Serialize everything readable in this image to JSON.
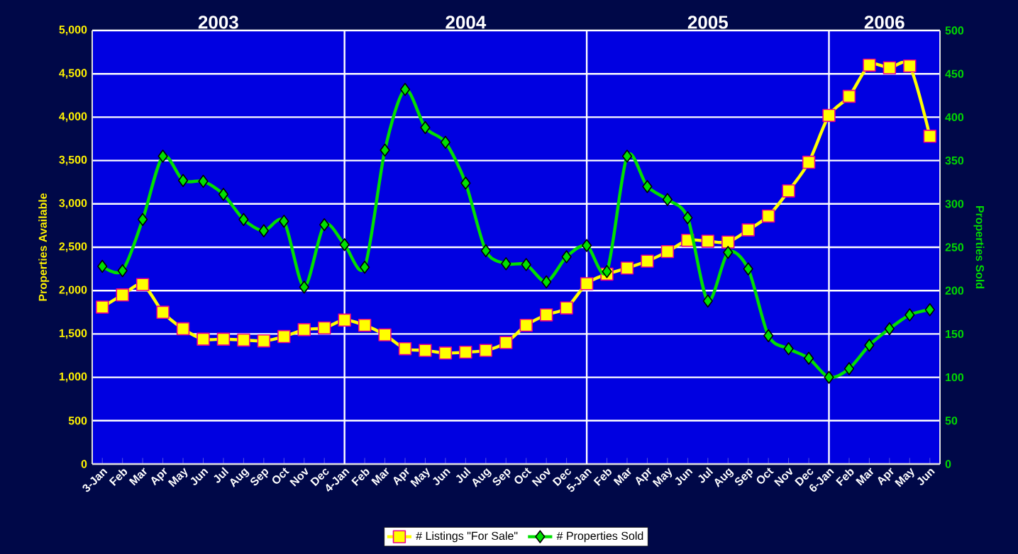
{
  "chart_data": {
    "type": "line",
    "categories": [
      "3-Jan",
      "Feb",
      "Mar",
      "Apr",
      "May",
      "Jun",
      "Jul",
      "Aug",
      "Sep",
      "Oct",
      "Nov",
      "Dec",
      "4-Jan",
      "Feb",
      "Mar",
      "Apr",
      "May",
      "Jun",
      "Jul",
      "Aug",
      "Sep",
      "Oct",
      "Nov",
      "Dec",
      "5-Jan",
      "Feb",
      "Mar",
      "Apr",
      "May",
      "Jun",
      "Jul",
      "Aug",
      "Sep",
      "Oct",
      "Nov",
      "Dec",
      "6-Jan",
      "Feb",
      "Mar",
      "Apr",
      "May",
      "Jun"
    ],
    "series": [
      {
        "name": "# Listings \"For Sale\"",
        "color": "#ffff00",
        "marker": "square",
        "values": [
          1810,
          1950,
          2070,
          1750,
          1560,
          1440,
          1440,
          1430,
          1420,
          1470,
          1550,
          1570,
          1660,
          1600,
          1490,
          1330,
          1310,
          1280,
          1290,
          1310,
          1400,
          1600,
          1720,
          1800,
          2080,
          2190,
          2260,
          2340,
          2450,
          2580,
          2570,
          2560,
          2700,
          2860,
          3150,
          3480,
          4020,
          4240,
          4600,
          4570,
          4590,
          3780
        ]
      },
      {
        "name": "# Properties Sold",
        "color": "#00e000",
        "marker": "diamond",
        "axis": "y2",
        "values": [
          228,
          223,
          282,
          355,
          327,
          326,
          311,
          282,
          269,
          280,
          204,
          276,
          253,
          227,
          362,
          432,
          388,
          371,
          324,
          246,
          231,
          230,
          210,
          239,
          252,
          222,
          355,
          320,
          305,
          284,
          188,
          244,
          225,
          148,
          133,
          122,
          100,
          110,
          137,
          156,
          172,
          178
        ]
      }
    ],
    "ylim": [
      0,
      5000
    ],
    "yticks": [
      0,
      500,
      {
        "value": 1000,
        "label": "1,000"
      },
      {
        "value": 1500,
        "label": "1,500"
      },
      {
        "value": 2000,
        "label": "2,000"
      },
      {
        "value": 2500,
        "label": "2,500"
      },
      {
        "value": 3000,
        "label": "3,000"
      },
      {
        "value": 3500,
        "label": "3,500"
      },
      {
        "value": 4000,
        "label": "4,000"
      },
      {
        "value": 4500,
        "label": "4,500"
      },
      {
        "value": 5000,
        "label": "5,000"
      }
    ],
    "y2lim": [
      0,
      500
    ],
    "y2ticks": [
      0,
      50,
      100,
      150,
      200,
      250,
      300,
      350,
      400,
      450,
      500
    ],
    "ylabel": "Properties Available",
    "y2label": "Properties Sold",
    "grid": "y",
    "legend": "bottom",
    "line_style": "solid",
    "ref_lines": [
      {
        "axis": "x",
        "value": "4-Jan",
        "color": "#ffffff"
      },
      {
        "axis": "x",
        "value": "5-Jan",
        "color": "#ffffff"
      },
      {
        "axis": "x",
        "value": "6-Jan",
        "color": "#ffffff"
      }
    ],
    "annotations": [
      "2003",
      "2004",
      "2005",
      "2006"
    ]
  }
}
